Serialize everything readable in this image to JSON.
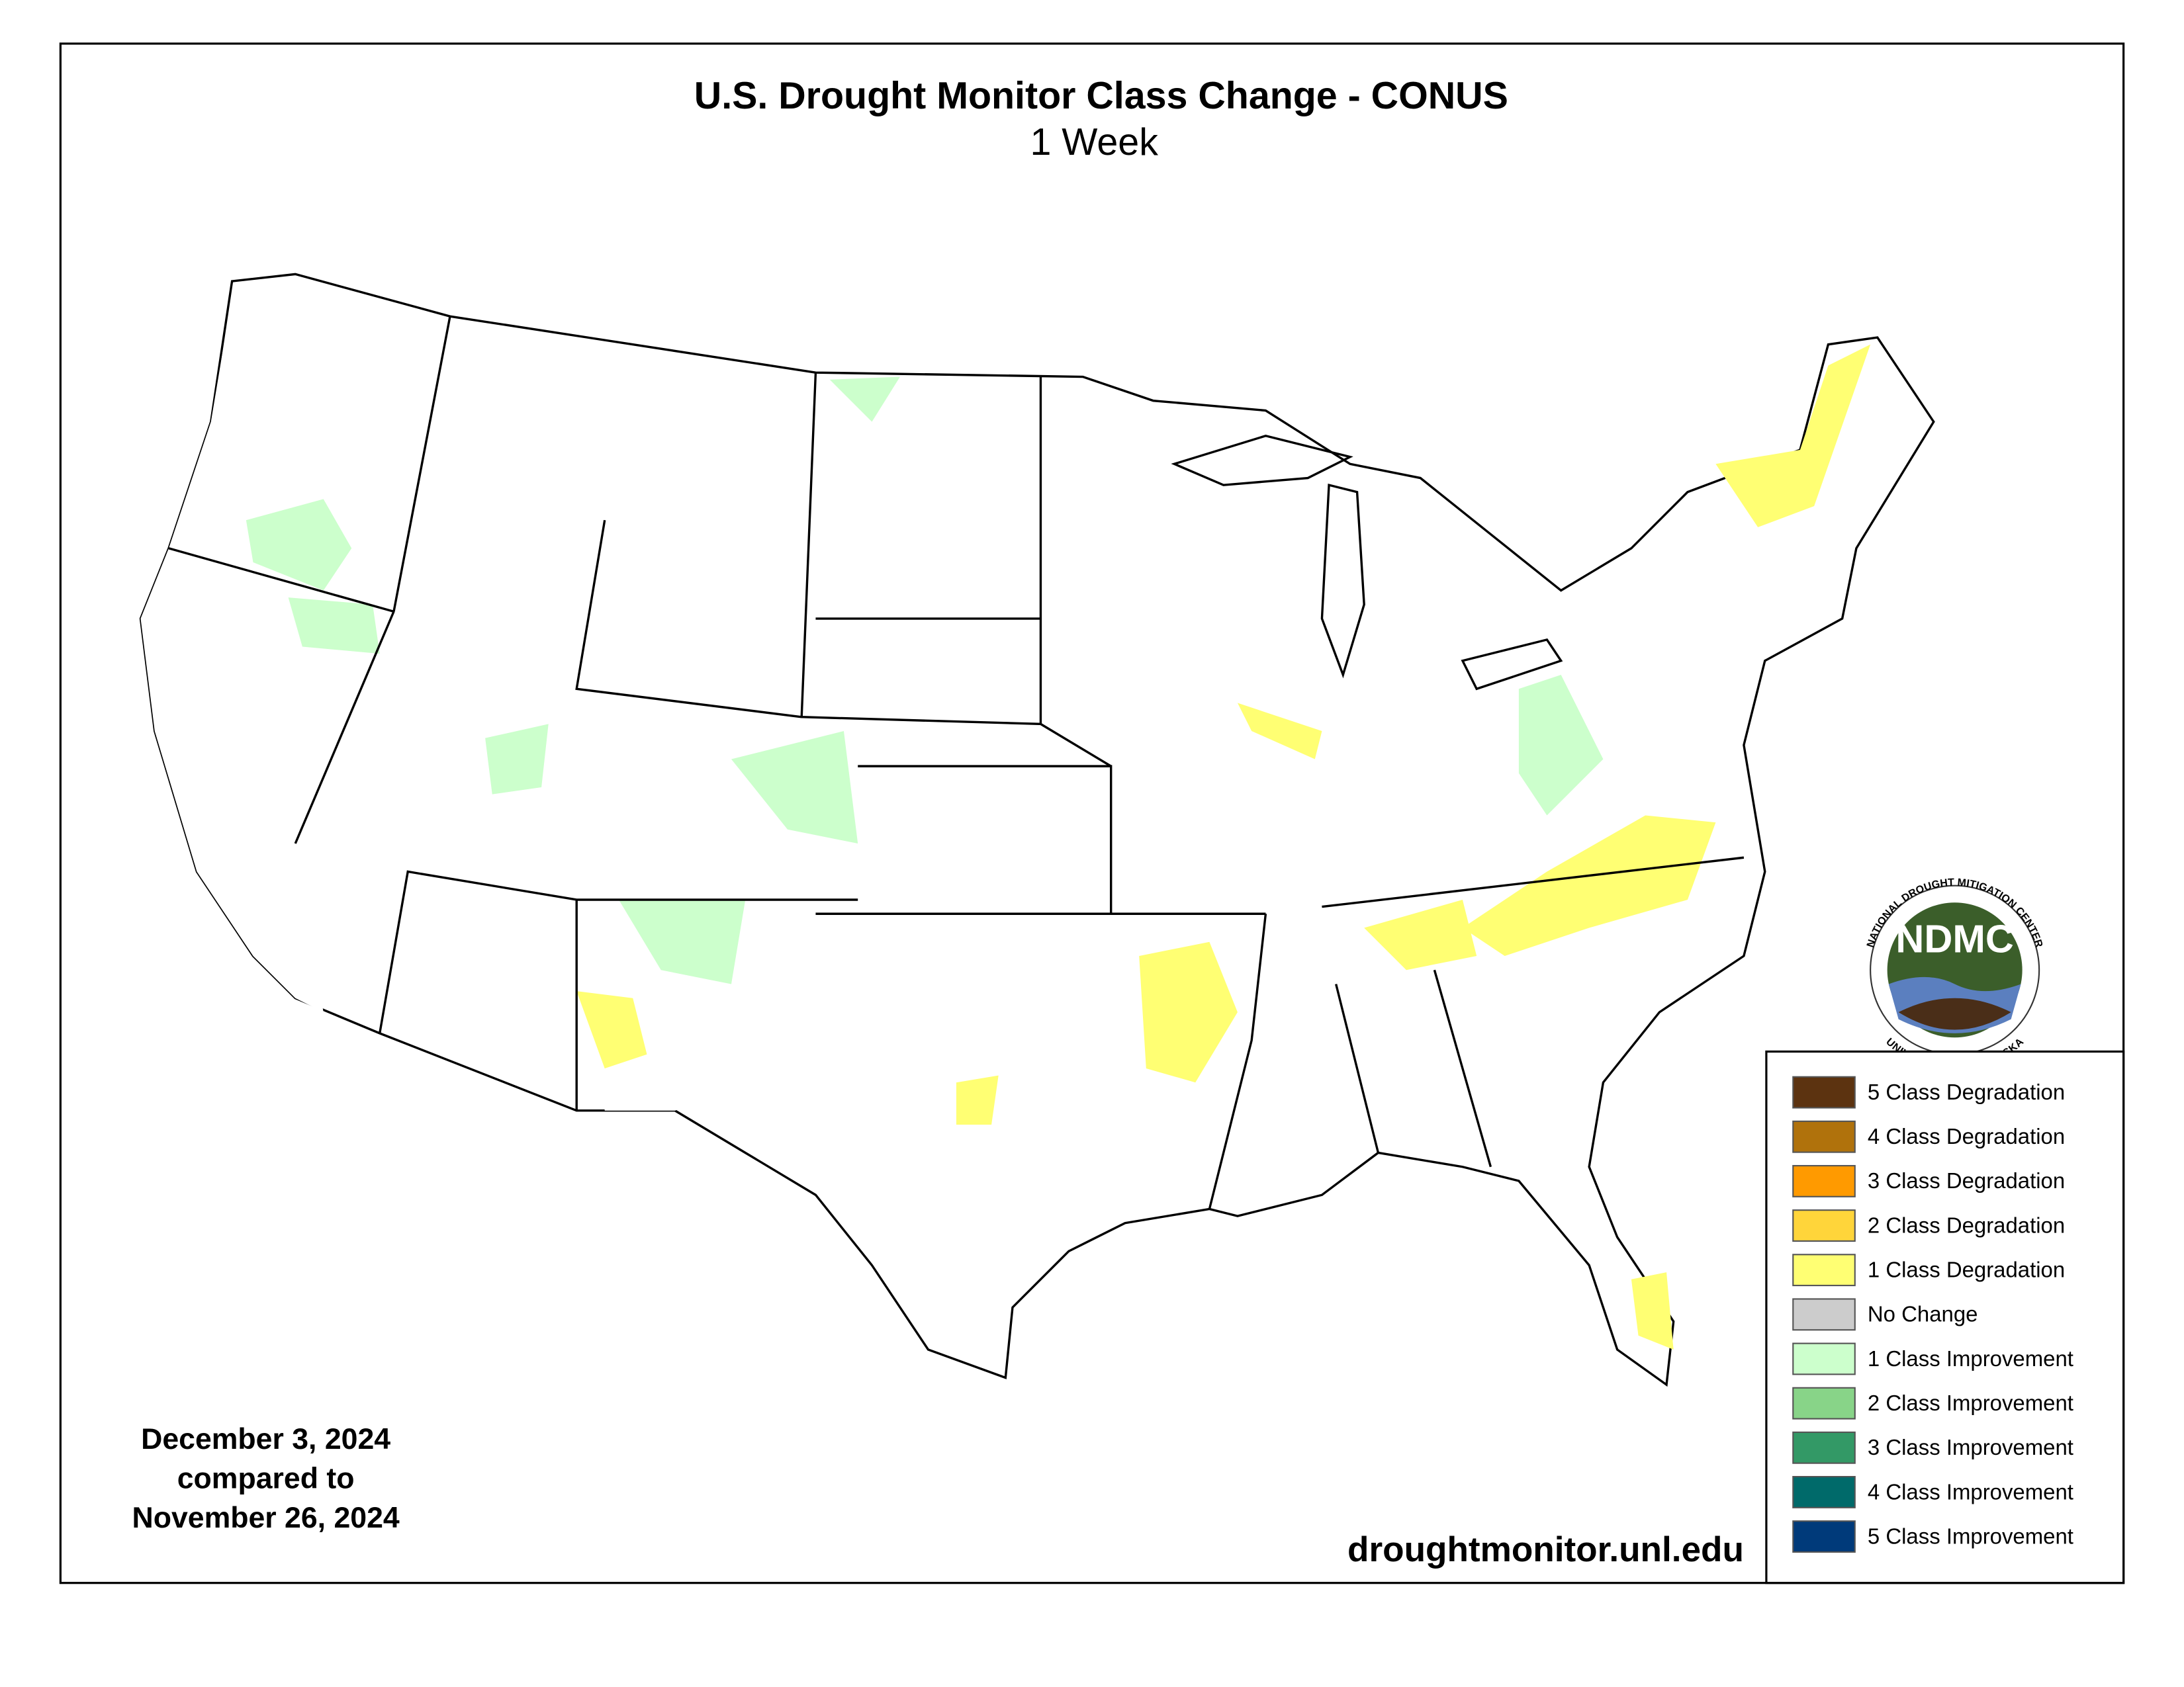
{
  "header": {
    "title": "U.S. Drought Monitor Class Change - CONUS",
    "subtitle": "1 Week"
  },
  "legend": [
    {
      "label": "5 Class Degradation",
      "color": "#5c3310"
    },
    {
      "label": "4 Class Degradation",
      "color": "#b0720c"
    },
    {
      "label": "3 Class Degradation",
      "color": "#ff9a00"
    },
    {
      "label": "2 Class Degradation",
      "color": "#ffd53a"
    },
    {
      "label": "1 Class Degradation",
      "color": "#ffff73"
    },
    {
      "label": "No Change",
      "color": "#cccccc"
    },
    {
      "label": "1 Class Improvement",
      "color": "#ccffcc"
    },
    {
      "label": "2 Class Improvement",
      "color": "#88d488"
    },
    {
      "label": "3 Class Improvement",
      "color": "#339966"
    },
    {
      "label": "4 Class Improvement",
      "color": "#006a6a"
    },
    {
      "label": "5 Class Improvement",
      "color": "#003a7a"
    }
  ],
  "date_note": [
    "December 3, 2024",
    "compared to",
    "November 26, 2024"
  ],
  "source": "droughtmonitor.unl.edu",
  "logo": {
    "abbr": "NDMC",
    "top_text": "NATIONAL DROUGHT MITIGATION CENTER",
    "bottom_text": "UNIVERSITY OF NEBRASKA"
  }
}
